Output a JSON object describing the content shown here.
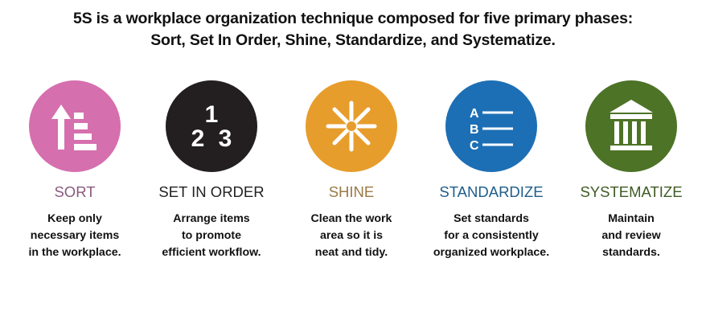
{
  "title": {
    "line1": "5S is a workplace organization technique composed for five primary phases:",
    "line2": "Sort, Set In Order, Shine, Standardize, and Systematize."
  },
  "colors": {
    "sort": "#d66fae",
    "set_in_order": "#231f20",
    "shine": "#e79d2c",
    "standardize": "#1d6fb5",
    "systematize": "#4d7326"
  },
  "phases": [
    {
      "label": "SORT",
      "icon": "sort-arrow-list-icon",
      "label_color": "#8a5a7e",
      "desc": [
        "Keep only",
        "necessary items",
        "in the workplace."
      ]
    },
    {
      "label": "SET IN ORDER",
      "icon": "numbers-123-icon",
      "numbers": [
        "1",
        "2",
        "3"
      ],
      "label_color": "#222222",
      "desc": [
        "Arrange items",
        "to promote",
        "efficient workflow."
      ]
    },
    {
      "label": "SHINE",
      "icon": "sparkle-star-icon",
      "label_color": "#9a7a45",
      "desc": [
        "Clean the work",
        "area so it is",
        "neat and tidy."
      ]
    },
    {
      "label": "STANDARDIZE",
      "icon": "abc-list-icon",
      "letters": [
        "A",
        "B",
        "C"
      ],
      "label_color": "#1f5d8a",
      "desc": [
        "Set standards",
        "for a consistently",
        "organized workplace."
      ]
    },
    {
      "label": "SYSTEMATIZE",
      "icon": "pillared-building-icon",
      "label_color": "#3f5a24",
      "desc": [
        "Maintain",
        "and review",
        "standards."
      ]
    }
  ]
}
